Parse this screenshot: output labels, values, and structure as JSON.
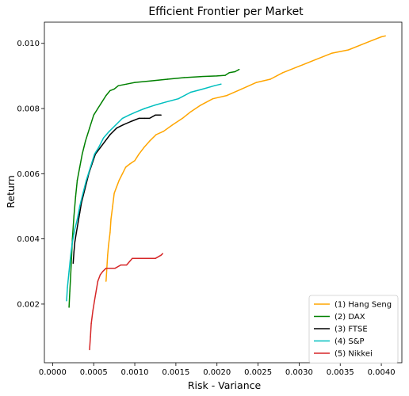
{
  "chart_data": {
    "type": "line",
    "title": "Efficient Frontier per Market",
    "xlabel": "Risk - Variance",
    "ylabel": "Return",
    "xlim": [
      -0.0001,
      0.00425
    ],
    "ylim": [
      0.0002,
      0.01065
    ],
    "xticks": [
      "0.0000",
      "0.0005",
      "0.0010",
      "0.0015",
      "0.0020",
      "0.0025",
      "0.0030",
      "0.0035",
      "0.0040"
    ],
    "yticks": [
      "0.002",
      "0.004",
      "0.006",
      "0.008",
      "0.010"
    ],
    "grid": false,
    "legend_position": "lower-right",
    "series": [
      {
        "name": "(1) Hang Seng",
        "color": "#ffa500",
        "x": [
          0.00065,
          0.00066,
          0.00067,
          0.00068,
          0.0007,
          0.00071,
          0.00073,
          0.00075,
          0.00078,
          0.00081,
          0.00085,
          0.00089,
          0.00094,
          0.001,
          0.00105,
          0.00111,
          0.00118,
          0.00126,
          0.00135,
          0.00146,
          0.00158,
          0.00168,
          0.0018,
          0.00195,
          0.00212,
          0.0023,
          0.00248,
          0.00265,
          0.0028,
          0.003,
          0.0032,
          0.0034,
          0.0036,
          0.0038,
          0.0039,
          0.004,
          0.00405
        ],
        "y": [
          0.0027,
          0.0031,
          0.0035,
          0.0038,
          0.0042,
          0.0046,
          0.005,
          0.0054,
          0.0056,
          0.0058,
          0.006,
          0.0062,
          0.0063,
          0.0064,
          0.0066,
          0.0068,
          0.007,
          0.0072,
          0.0073,
          0.0075,
          0.0077,
          0.0079,
          0.0081,
          0.0083,
          0.0084,
          0.0086,
          0.0088,
          0.0089,
          0.0091,
          0.0093,
          0.0095,
          0.0097,
          0.0098,
          0.01,
          0.0101,
          0.0102,
          0.01023
        ]
      },
      {
        "name": "(2) DAX",
        "color": "#008000",
        "x": [
          0.0002,
          0.00021,
          0.00022,
          0.00023,
          0.00024,
          0.00026,
          0.00028,
          0.0003,
          0.00033,
          0.00036,
          0.0004,
          0.00045,
          0.0005,
          0.00055,
          0.0006,
          0.00065,
          0.0007,
          0.00075,
          0.0008,
          0.0009,
          0.001,
          0.0012,
          0.0014,
          0.0016,
          0.0018,
          0.002,
          0.0021,
          0.00215,
          0.00222,
          0.00227
        ],
        "y": [
          0.0019,
          0.0024,
          0.0029,
          0.0034,
          0.004,
          0.0047,
          0.0053,
          0.0058,
          0.0062,
          0.0066,
          0.007,
          0.0074,
          0.0078,
          0.008,
          0.0082,
          0.0084,
          0.00855,
          0.0086,
          0.0087,
          0.00875,
          0.0088,
          0.00885,
          0.0089,
          0.00895,
          0.00898,
          0.009,
          0.00902,
          0.0091,
          0.00913,
          0.0092
        ]
      },
      {
        "name": "(3) FTSE",
        "color": "#000000",
        "x": [
          0.00025,
          0.00026,
          0.00027,
          0.00029,
          0.00031,
          0.00033,
          0.00035,
          0.00038,
          0.00041,
          0.00044,
          0.00048,
          0.00052,
          0.00058,
          0.00064,
          0.0007,
          0.00078,
          0.00086,
          0.00095,
          0.00105,
          0.00112,
          0.00118,
          0.00125,
          0.00132
        ],
        "y": [
          0.00325,
          0.0036,
          0.0039,
          0.0042,
          0.0045,
          0.0048,
          0.0051,
          0.0054,
          0.0057,
          0.006,
          0.0063,
          0.0066,
          0.0068,
          0.007,
          0.0072,
          0.0074,
          0.0075,
          0.0076,
          0.0077,
          0.0077,
          0.0077,
          0.0078,
          0.0078
        ]
      },
      {
        "name": "(4) S&P",
        "color": "#00bfbf",
        "x": [
          0.00017,
          0.00018,
          0.0002,
          0.00022,
          0.00024,
          0.00027,
          0.0003,
          0.00033,
          0.00037,
          0.00041,
          0.00046,
          0.00051,
          0.00056,
          0.00062,
          0.00069,
          0.00077,
          0.00085,
          0.00093,
          0.00102,
          0.00112,
          0.00124,
          0.00138,
          0.00153,
          0.00168,
          0.00183,
          0.00197,
          0.00205
        ],
        "y": [
          0.0021,
          0.0025,
          0.003,
          0.0035,
          0.0039,
          0.0043,
          0.0046,
          0.005,
          0.0054,
          0.0058,
          0.0062,
          0.0066,
          0.0068,
          0.0071,
          0.0073,
          0.0075,
          0.0077,
          0.0078,
          0.0079,
          0.008,
          0.0081,
          0.0082,
          0.0083,
          0.0085,
          0.0086,
          0.0087,
          0.00875
        ]
      },
      {
        "name": "(5) Nikkei",
        "color": "#d62728",
        "x": [
          0.00045,
          0.00046,
          0.00047,
          0.00049,
          0.00051,
          0.00053,
          0.00055,
          0.00058,
          0.00061,
          0.00065,
          0.0007,
          0.00076,
          0.00083,
          0.0009,
          0.00097,
          0.00105,
          0.00115,
          0.00125,
          0.00132,
          0.00134
        ],
        "y": [
          0.0006,
          0.001,
          0.0014,
          0.0018,
          0.0021,
          0.0024,
          0.0027,
          0.0029,
          0.003,
          0.0031,
          0.0031,
          0.0031,
          0.0032,
          0.0032,
          0.0034,
          0.0034,
          0.0034,
          0.0034,
          0.0035,
          0.00355
        ]
      }
    ]
  }
}
